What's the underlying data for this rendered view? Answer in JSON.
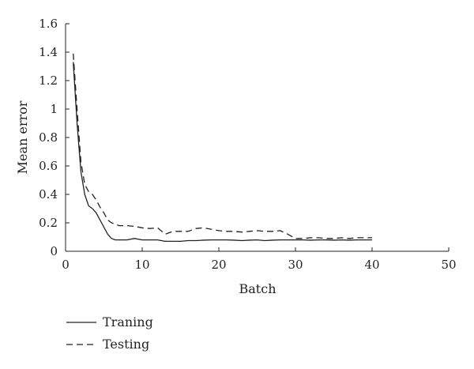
{
  "chart_data": {
    "type": "line",
    "xlabel": "Batch",
    "ylabel": "Mean error",
    "xlim": [
      0,
      50
    ],
    "ylim": [
      0,
      1.6
    ],
    "x_ticks": [
      0,
      10,
      20,
      30,
      40,
      50
    ],
    "y_ticks": [
      0,
      0.2,
      0.4,
      0.6,
      0.8,
      1,
      1.2,
      1.4,
      1.6
    ],
    "x_tick_labels": [
      "0",
      "10",
      "20",
      "30",
      "40",
      "50"
    ],
    "y_tick_labels": [
      "0",
      "0.2",
      "0.4",
      "0.6",
      "0.8",
      "1",
      "1.2",
      "1.4",
      "1.6"
    ],
    "grid": false,
    "legend_position": "bottom-left",
    "series": [
      {
        "name": "Traning",
        "style": "solid",
        "color": "#222222",
        "x": [
          1,
          1.5,
          2,
          2.5,
          3,
          3.5,
          4,
          4.5,
          5,
          5.5,
          6,
          6.5,
          7,
          8,
          9,
          10,
          11,
          12,
          13,
          14,
          15,
          16,
          17,
          18,
          19,
          20,
          21,
          22,
          23,
          24,
          25,
          26,
          27,
          28,
          29,
          30,
          31,
          32,
          33,
          34,
          35,
          36,
          37,
          38,
          39,
          40
        ],
        "y": [
          1.33,
          0.9,
          0.56,
          0.4,
          0.32,
          0.3,
          0.27,
          0.22,
          0.17,
          0.12,
          0.09,
          0.08,
          0.08,
          0.08,
          0.09,
          0.08,
          0.08,
          0.08,
          0.07,
          0.07,
          0.07,
          0.075,
          0.075,
          0.078,
          0.08,
          0.08,
          0.08,
          0.078,
          0.075,
          0.078,
          0.08,
          0.075,
          0.078,
          0.08,
          0.08,
          0.08,
          0.08,
          0.078,
          0.08,
          0.08,
          0.078,
          0.08,
          0.078,
          0.08,
          0.08,
          0.08
        ]
      },
      {
        "name": "Testing",
        "style": "dashed",
        "color": "#222222",
        "x": [
          1,
          1.5,
          2,
          2.5,
          3,
          3.5,
          4,
          4.5,
          5,
          5.5,
          6,
          7,
          8,
          9,
          10,
          11,
          12,
          13,
          14,
          15,
          16,
          17,
          18,
          19,
          20,
          21,
          22,
          23,
          24,
          25,
          26,
          27,
          28,
          29,
          30,
          31,
          32,
          33,
          34,
          35,
          36,
          37,
          38,
          39,
          40
        ],
        "y": [
          1.39,
          1.0,
          0.63,
          0.47,
          0.42,
          0.4,
          0.36,
          0.31,
          0.27,
          0.22,
          0.2,
          0.18,
          0.18,
          0.175,
          0.165,
          0.16,
          0.165,
          0.12,
          0.14,
          0.14,
          0.14,
          0.16,
          0.165,
          0.155,
          0.145,
          0.14,
          0.14,
          0.135,
          0.14,
          0.145,
          0.14,
          0.14,
          0.145,
          0.12,
          0.09,
          0.09,
          0.095,
          0.095,
          0.09,
          0.09,
          0.095,
          0.09,
          0.095,
          0.095,
          0.095
        ]
      }
    ]
  }
}
